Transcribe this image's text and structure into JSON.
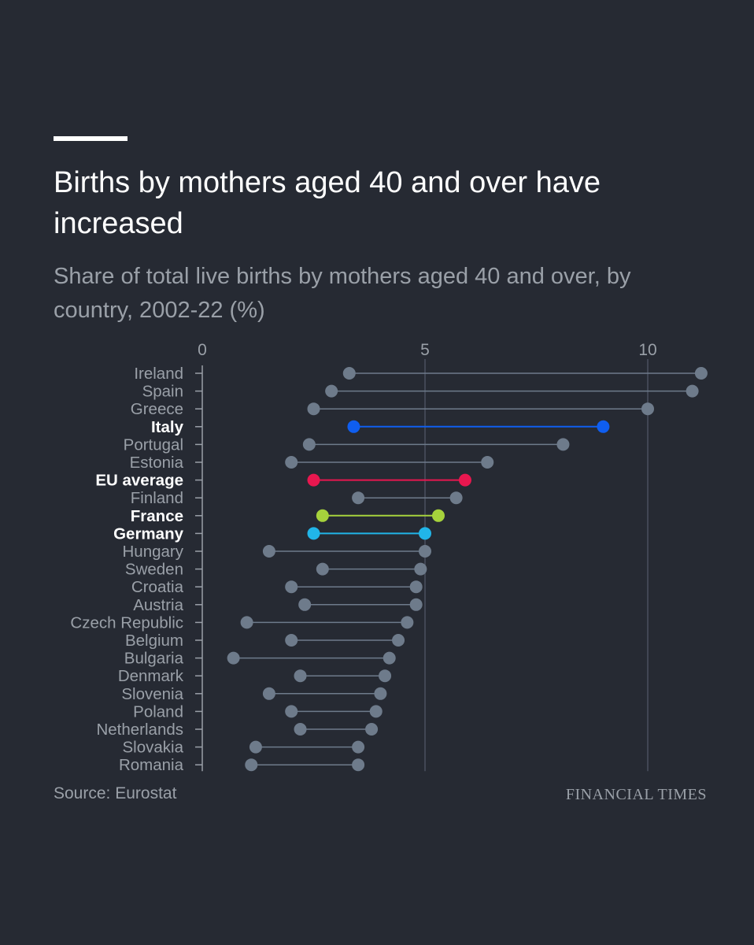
{
  "title": "Births by mothers aged 40 and over have increased",
  "subtitle": "Share of total live births by mothers aged 40 and over, by country, 2002-22 (%)",
  "source": "Source: Eurostat",
  "brand": "FINANCIAL TIMES",
  "colors": {
    "background": "#262a33",
    "default": "#6e7b8b",
    "grid": "#4a5060",
    "Italy": "#0f5ef0",
    "EU average": "#e8174f",
    "France": "#a6d23c",
    "Germany": "#21b5e8"
  },
  "chart_data": {
    "type": "dumbbell",
    "xlabel": "",
    "ylabel": "",
    "xlim": [
      0,
      11.2
    ],
    "xticks": [
      0,
      5,
      10
    ],
    "series_names": [
      "2002",
      "2022"
    ],
    "highlighted": [
      "Italy",
      "EU average",
      "France",
      "Germany"
    ],
    "categories": [
      "Ireland",
      "Spain",
      "Greece",
      "Italy",
      "Portugal",
      "Estonia",
      "EU average",
      "Finland",
      "France",
      "Germany",
      "Hungary",
      "Sweden",
      "Croatia",
      "Austria",
      "Czech Republic",
      "Belgium",
      "Bulgaria",
      "Denmark",
      "Slovenia",
      "Poland",
      "Netherlands",
      "Slovakia",
      "Romania"
    ],
    "start": [
      3.3,
      2.9,
      2.5,
      3.4,
      2.4,
      2.0,
      2.5,
      3.5,
      2.7,
      2.5,
      1.5,
      2.7,
      2.0,
      2.3,
      1.0,
      2.0,
      0.7,
      2.2,
      1.5,
      2.0,
      2.2,
      1.2,
      1.1
    ],
    "end": [
      11.2,
      11.0,
      10.0,
      9.0,
      8.1,
      6.4,
      5.9,
      5.7,
      5.3,
      5.0,
      5.0,
      4.9,
      4.8,
      4.8,
      4.6,
      4.4,
      4.2,
      4.1,
      4.0,
      3.9,
      3.8,
      3.5,
      3.5
    ]
  }
}
